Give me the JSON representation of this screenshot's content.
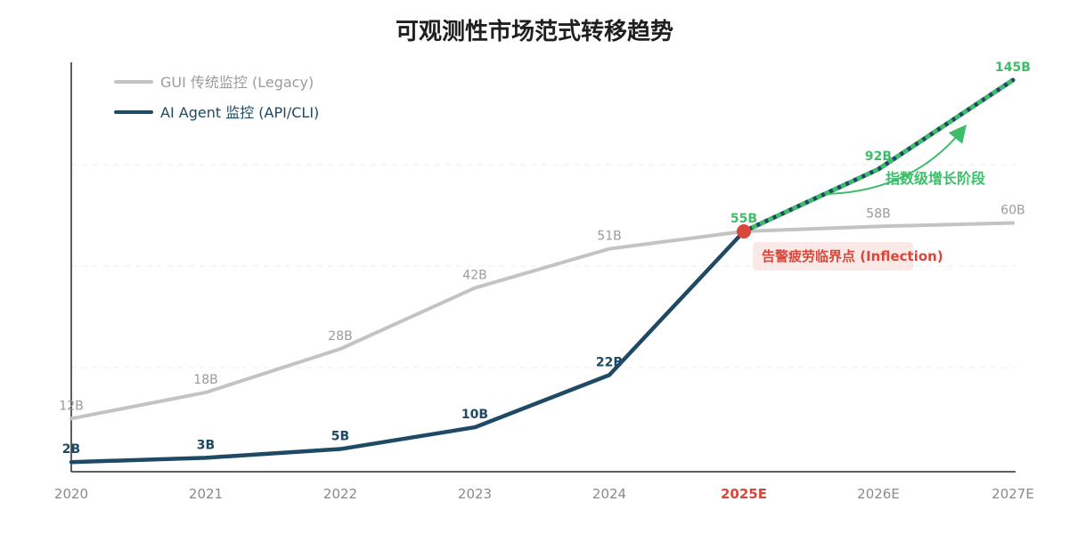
{
  "chart_data": {
    "type": "line",
    "title": "可观测性市场范式转移趋势",
    "categories": [
      "2020",
      "2021",
      "2022",
      "2023",
      "2024",
      "2025E",
      "2026E",
      "2027E"
    ],
    "highlight_category": "2025E",
    "ylim": [
      0,
      150
    ],
    "grid": "horizontal dashed",
    "legend_position": "top-left",
    "series": [
      {
        "name": "GUI 传统监控 (Legacy)",
        "color": "#c3c3c3",
        "values": [
          12,
          18,
          28,
          42,
          51,
          55,
          58,
          60
        ],
        "labels": [
          "12B",
          "18B",
          "28B",
          "42B",
          "51B",
          "",
          "58B",
          "60B"
        ]
      },
      {
        "name": "AI Agent 监控 (API/CLI)",
        "color": "#1e4a66",
        "values": [
          2,
          3,
          5,
          10,
          22,
          55,
          92,
          145
        ],
        "labels": [
          "2B",
          "3B",
          "5B",
          "10B",
          "22B",
          "55B",
          "92B",
          "145B"
        ],
        "projected_from": "2025E",
        "projected_color": "#3dbd6a"
      }
    ],
    "annotations": {
      "inflection_label": "告警疲劳临界点 (Inflection)",
      "inflection_color": "#d9473b",
      "growth_label": "指数级增长阶段",
      "growth_color": "#3dbd6a"
    }
  }
}
